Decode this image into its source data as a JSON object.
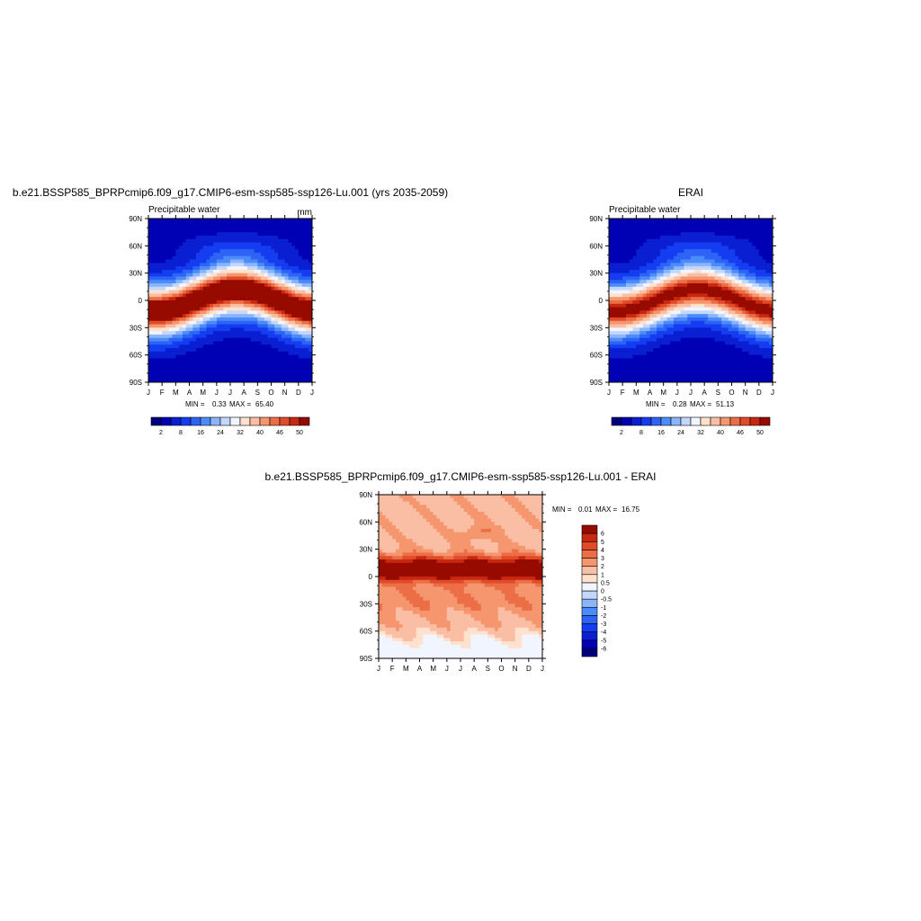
{
  "chart_data": [
    {
      "type": "heatmap",
      "title": "b.e21.BSSP585_BPRPcmip6.f09_g17.CMIP6-esm-ssp585-ssp126-Lu.001 (yrs 2035-2059)",
      "left_label": "Precipitable water",
      "right_label": "mm",
      "x_tick_labels": [
        "J",
        "F",
        "M",
        "A",
        "M",
        "J",
        "J",
        "A",
        "S",
        "O",
        "N",
        "D",
        "J"
      ],
      "y_tick_labels": [
        "90N",
        "60N",
        "30N",
        "0",
        "30S",
        "60S",
        "90S"
      ],
      "ylim": [
        -90,
        90
      ],
      "min_label": "MIN =",
      "min_value": "0.33",
      "max_label": "MAX =",
      "max_value": "65.40",
      "amplitude": 12,
      "peak": 58,
      "colorbar": {
        "orientation": "horizontal",
        "levels": [
          2,
          5,
          8,
          12,
          16,
          20,
          24,
          28,
          32,
          36,
          40,
          43,
          46,
          48,
          50
        ],
        "tick_labels": [
          "2",
          "8",
          "16",
          "24",
          "32",
          "40",
          "46",
          "50"
        ]
      }
    },
    {
      "type": "heatmap",
      "title": "ERAI",
      "left_label": "Precipitable water",
      "right_label": "",
      "x_tick_labels": [
        "J",
        "F",
        "M",
        "A",
        "M",
        "J",
        "J",
        "A",
        "S",
        "O",
        "N",
        "D",
        "J"
      ],
      "y_tick_labels": [
        "90N",
        "60N",
        "30N",
        "0",
        "30S",
        "60S",
        "90S"
      ],
      "ylim": [
        -90,
        90
      ],
      "min_label": "MIN =",
      "min_value": "0.28",
      "max_label": "MAX =",
      "max_value": "51.13",
      "amplitude": 12,
      "peak": 52,
      "colorbar": {
        "orientation": "horizontal",
        "levels": [
          2,
          5,
          8,
          12,
          16,
          20,
          24,
          28,
          32,
          36,
          40,
          43,
          46,
          48,
          50
        ],
        "tick_labels": [
          "2",
          "8",
          "16",
          "24",
          "32",
          "40",
          "46",
          "50"
        ]
      }
    },
    {
      "type": "heatmap",
      "title": "b.e21.BSSP585_BPRPcmip6.f09_g17.CMIP6-esm-ssp585-ssp126-Lu.001 - ERAI",
      "left_label": "",
      "right_label": "",
      "x_tick_labels": [
        "J",
        "F",
        "M",
        "A",
        "M",
        "J",
        "J",
        "A",
        "S",
        "O",
        "N",
        "D",
        "J"
      ],
      "y_tick_labels": [
        "90N",
        "60N",
        "30N",
        "0",
        "30S",
        "60S",
        "90S"
      ],
      "ylim": [
        -90,
        90
      ],
      "min_label": "MIN =",
      "min_value": "0.01",
      "max_label": "MAX =",
      "max_value": "16.75",
      "colorbar": {
        "orientation": "vertical",
        "levels": [
          -6,
          -5,
          -4,
          -3,
          -2,
          -1,
          -0.5,
          0,
          0.5,
          1,
          2,
          3,
          4,
          5,
          6
        ],
        "tick_labels": [
          "-6",
          "-5",
          "-4",
          "-3",
          "-2",
          "-1",
          "-0.5",
          "0",
          "0.5",
          "1",
          "2",
          "3",
          "4",
          "5",
          "6"
        ]
      }
    }
  ],
  "colors": {
    "blue_red_16": [
      "#00007f",
      "#0000b4",
      "#0a1ed2",
      "#143cf0",
      "#2d64f5",
      "#4b8cfa",
      "#8cb4fa",
      "#c3d7fa",
      "#f0f5ff",
      "#ffe1cd",
      "#fabea5",
      "#f5966e",
      "#eb6e46",
      "#e14b28",
      "#c8280f",
      "#960a00",
      "#780000"
    ]
  }
}
